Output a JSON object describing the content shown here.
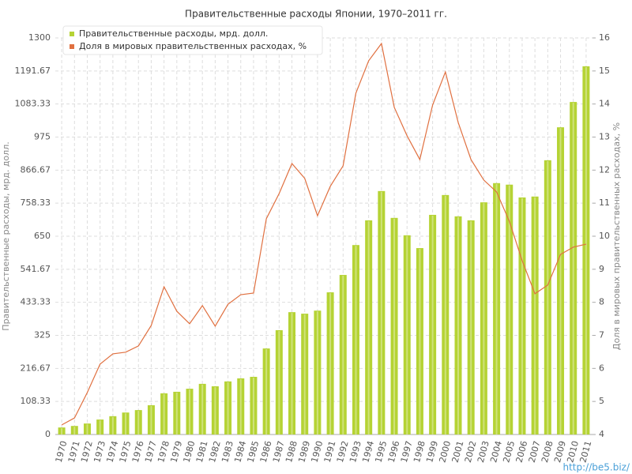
{
  "chart_data": {
    "type": "combo",
    "title": "Правительственные расходы Японии, 1970–2011 гг.",
    "y_label": "Правительственные расходы, мрд. долл.",
    "y2_label": "Доля в мировых правительственных расходах, %",
    "watermark": "http://be5.biz/",
    "legend": "top-left",
    "grid": true,
    "categories": [
      "1970",
      "1971",
      "1972",
      "1973",
      "1974",
      "1975",
      "1976",
      "1977",
      "1978",
      "1979",
      "1980",
      "1981",
      "1982",
      "1983",
      "1984",
      "1985",
      "1986",
      "1987",
      "1988",
      "1989",
      "1990",
      "1991",
      "1992",
      "1993",
      "1994",
      "1995",
      "1996",
      "1997",
      "1998",
      "1999",
      "2000",
      "2001",
      "2002",
      "2003",
      "2004",
      "2005",
      "2006",
      "2007",
      "2008",
      "2009",
      "2010",
      "2011"
    ],
    "series": [
      {
        "name": "Правительственные расходы, мрд. долл.",
        "type": "bar",
        "axis": "y",
        "color": "#b5d334",
        "values": [
          23,
          28,
          36,
          49,
          60,
          72,
          80,
          96,
          135,
          140,
          150,
          166,
          158,
          174,
          184,
          189,
          282,
          342,
          401,
          396,
          406,
          466,
          523,
          621,
          702,
          798,
          710,
          653,
          611,
          720,
          785,
          715,
          702,
          761,
          824,
          819,
          777,
          780,
          899,
          1007,
          1090,
          1207
        ]
      },
      {
        "name": "Доля в мировых правительственных расходах, %",
        "type": "line",
        "axis": "y2",
        "color": "#e07040",
        "values": [
          4.29,
          4.5,
          5.27,
          6.13,
          6.44,
          6.49,
          6.68,
          7.3,
          8.47,
          7.73,
          7.35,
          7.9,
          7.28,
          7.94,
          8.23,
          8.28,
          10.53,
          11.29,
          12.2,
          11.75,
          10.62,
          11.51,
          12.13,
          14.33,
          15.31,
          15.83,
          13.9,
          13.04,
          12.32,
          13.97,
          14.97,
          13.44,
          12.32,
          11.7,
          11.34,
          10.45,
          9.26,
          8.26,
          8.52,
          9.45,
          9.67,
          9.76
        ]
      }
    ],
    "ylim": [
      0,
      1300
    ],
    "yticks": [
      0,
      108.33,
      216.67,
      325,
      433.33,
      541.67,
      650,
      758.33,
      866.67,
      975,
      1083.33,
      1191.67,
      1300
    ],
    "y2lim": [
      4,
      16
    ],
    "y2ticks": [
      4,
      5,
      6,
      7,
      8,
      9,
      10,
      11,
      12,
      13,
      14,
      15,
      16
    ]
  }
}
